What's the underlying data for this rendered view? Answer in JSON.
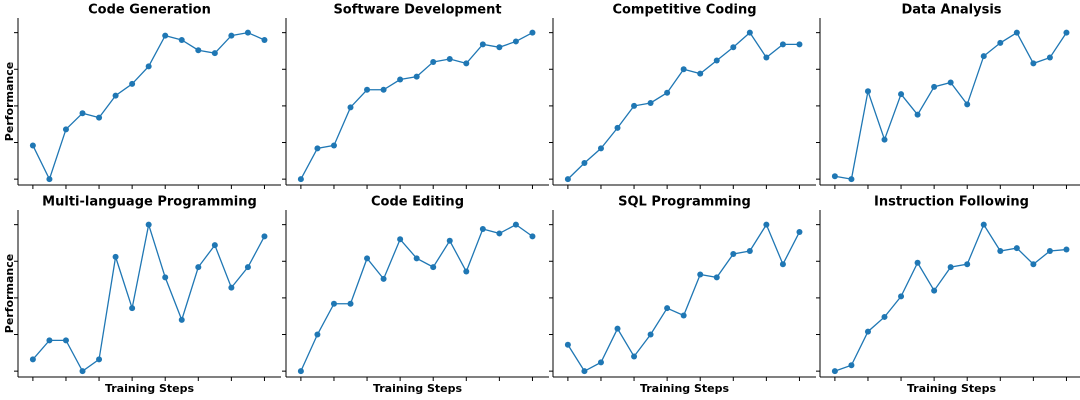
{
  "chart_data": [
    {
      "type": "line",
      "title": "Code Generation",
      "y_label": "Performance",
      "color": "#1f77b4",
      "x": [
        0,
        1,
        2,
        3,
        4,
        5,
        6,
        7,
        8,
        9,
        10,
        11,
        12,
        13,
        14
      ],
      "values": [
        0.23,
        0,
        0.34,
        0.45,
        0.42,
        0.57,
        0.65,
        0.77,
        0.98,
        0.95,
        0.88,
        0.86,
        0.98,
        1.0,
        0.95
      ],
      "xlim": [
        -0.9,
        15
      ],
      "xticks": [
        0,
        2,
        4,
        6,
        8,
        10,
        12,
        14
      ],
      "ylim": [
        -0.04,
        1.1
      ],
      "yticks": [
        0,
        0.25,
        0.5,
        0.75,
        1
      ]
    },
    {
      "type": "line",
      "title": "Software Development",
      "color": "#1f77b4",
      "x": [
        0,
        1,
        2,
        3,
        4,
        5,
        6,
        7,
        8,
        9,
        10,
        11,
        12,
        13,
        14
      ],
      "values": [
        0,
        0.21,
        0.23,
        0.49,
        0.61,
        0.61,
        0.68,
        0.7,
        0.8,
        0.82,
        0.79,
        0.92,
        0.9,
        0.94,
        1.0
      ],
      "xlim": [
        -0.9,
        15
      ],
      "xticks": [
        0,
        2,
        4,
        6,
        8,
        10,
        12,
        14
      ],
      "ylim": [
        -0.04,
        1.1
      ],
      "yticks": [
        0,
        0.25,
        0.5,
        0.75,
        1
      ]
    },
    {
      "type": "line",
      "title": "Competitive Coding",
      "color": "#1f77b4",
      "x": [
        0,
        1,
        2,
        3,
        4,
        5,
        6,
        7,
        8,
        9,
        10,
        11,
        12,
        13,
        14
      ],
      "values": [
        0,
        0.11,
        0.21,
        0.35,
        0.5,
        0.52,
        0.59,
        0.75,
        0.72,
        0.81,
        0.9,
        1.0,
        0.83,
        0.92,
        0.92
      ],
      "xlim": [
        -0.9,
        15
      ],
      "xticks": [
        0,
        2,
        4,
        6,
        8,
        10,
        12,
        14
      ],
      "ylim": [
        -0.04,
        1.1
      ],
      "yticks": [
        0,
        0.25,
        0.5,
        0.75,
        1
      ]
    },
    {
      "type": "line",
      "title": "Data Analysis",
      "color": "#1f77b4",
      "x": [
        0,
        1,
        2,
        3,
        4,
        5,
        6,
        7,
        8,
        9,
        10,
        11,
        12,
        13,
        14
      ],
      "values": [
        0.02,
        0,
        0.6,
        0.27,
        0.58,
        0.44,
        0.63,
        0.66,
        0.51,
        0.84,
        0.93,
        1.0,
        0.79,
        0.83,
        1.0
      ],
      "xlim": [
        -0.9,
        15
      ],
      "xticks": [
        0,
        2,
        4,
        6,
        8,
        10,
        12,
        14
      ],
      "ylim": [
        -0.04,
        1.1
      ],
      "yticks": [
        0,
        0.25,
        0.5,
        0.75,
        1
      ]
    },
    {
      "type": "line",
      "title": "Multi-language Programming",
      "y_label": "Performance",
      "x_label": "Training Steps",
      "color": "#1f77b4",
      "x": [
        0,
        1,
        2,
        3,
        4,
        5,
        6,
        7,
        8,
        9,
        10,
        11,
        12,
        13,
        14
      ],
      "values": [
        0.08,
        0.21,
        0.21,
        0,
        0.08,
        0.78,
        0.43,
        1.0,
        0.64,
        0.35,
        0.71,
        0.86,
        0.57,
        0.71,
        0.92
      ],
      "xlim": [
        -0.9,
        15
      ],
      "xticks": [
        0,
        2,
        4,
        6,
        8,
        10,
        12,
        14
      ],
      "ylim": [
        -0.04,
        1.1
      ],
      "yticks": [
        0,
        0.25,
        0.5,
        0.75,
        1
      ]
    },
    {
      "type": "line",
      "title": "Code Editing",
      "x_label": "Training Steps",
      "color": "#1f77b4",
      "x": [
        0,
        1,
        2,
        3,
        4,
        5,
        6,
        7,
        8,
        9,
        10,
        11,
        12,
        13,
        14
      ],
      "values": [
        0,
        0.25,
        0.46,
        0.46,
        0.77,
        0.63,
        0.9,
        0.77,
        0.71,
        0.89,
        0.68,
        0.97,
        0.94,
        1.0,
        0.92
      ],
      "xlim": [
        -0.9,
        15
      ],
      "xticks": [
        0,
        2,
        4,
        6,
        8,
        10,
        12,
        14
      ],
      "ylim": [
        -0.04,
        1.1
      ],
      "yticks": [
        0,
        0.25,
        0.5,
        0.75,
        1
      ]
    },
    {
      "type": "line",
      "title": "SQL Programming",
      "x_label": "Training Steps",
      "color": "#1f77b4",
      "x": [
        0,
        1,
        2,
        3,
        4,
        5,
        6,
        7,
        8,
        9,
        10,
        11,
        12,
        13,
        14
      ],
      "values": [
        0.18,
        0,
        0.06,
        0.29,
        0.1,
        0.25,
        0.43,
        0.38,
        0.66,
        0.64,
        0.8,
        0.82,
        1.0,
        0.73,
        0.95
      ],
      "xlim": [
        -0.9,
        15
      ],
      "xticks": [
        0,
        2,
        4,
        6,
        8,
        10,
        12,
        14
      ],
      "ylim": [
        -0.04,
        1.1
      ],
      "yticks": [
        0,
        0.25,
        0.5,
        0.75,
        1
      ]
    },
    {
      "type": "line",
      "title": "Instruction Following",
      "x_label": "Training Steps",
      "color": "#1f77b4",
      "x": [
        0,
        1,
        2,
        3,
        4,
        5,
        6,
        7,
        8,
        9,
        10,
        11,
        12,
        13,
        14
      ],
      "values": [
        0,
        0.04,
        0.27,
        0.37,
        0.51,
        0.74,
        0.55,
        0.71,
        0.73,
        1.0,
        0.82,
        0.84,
        0.73,
        0.82,
        0.83
      ],
      "xlim": [
        -0.9,
        15
      ],
      "xticks": [
        0,
        2,
        4,
        6,
        8,
        10,
        12,
        14
      ],
      "ylim": [
        -0.04,
        1.1
      ],
      "yticks": [
        0,
        0.25,
        0.5,
        0.75,
        1
      ]
    }
  ]
}
